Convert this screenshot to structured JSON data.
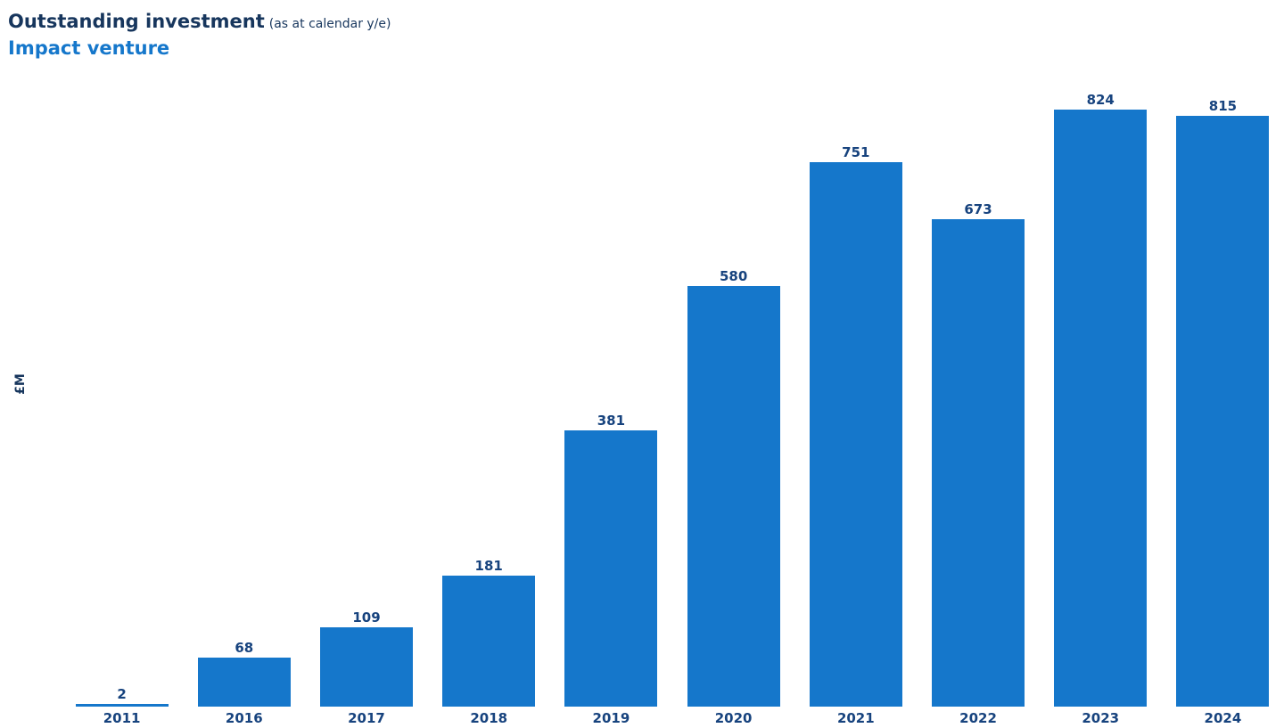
{
  "header": {
    "title": "Outstanding investment",
    "title_suffix": "(as at calendar y/e)",
    "subtitle": "Impact venture"
  },
  "chart_data": {
    "type": "bar",
    "title": "Outstanding investment (as at calendar y/e)",
    "subtitle": "Impact venture",
    "categories": [
      "2011",
      "2016",
      "2017",
      "2018",
      "2019",
      "2020",
      "2021",
      "2022",
      "2023",
      "2024"
    ],
    "values": [
      2,
      68,
      109,
      181,
      381,
      580,
      751,
      673,
      824,
      815
    ],
    "xlabel": "",
    "ylabel": "£M",
    "ylim": [
      0,
      870
    ],
    "grid": false,
    "legend": "none",
    "data_labels": true
  },
  "colors": {
    "title_navy": "#17365D",
    "bar_blue": "#1577CB",
    "subtitle_blue": "#1577CB",
    "axis_label_navy": "#17437E"
  }
}
